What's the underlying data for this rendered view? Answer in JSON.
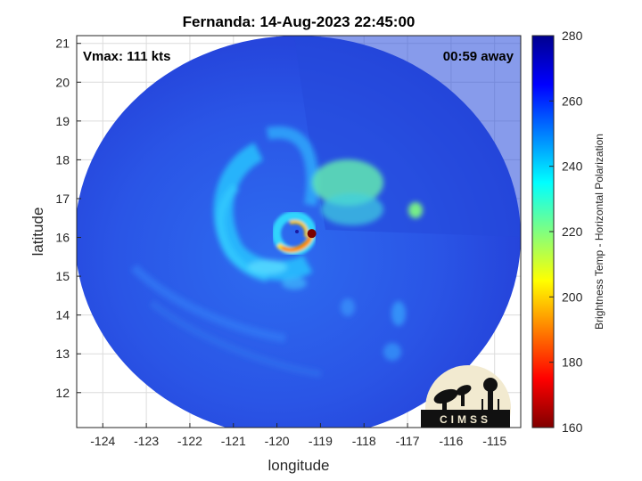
{
  "title": "Fernanda: 14-Aug-2023 22:45:00",
  "vmax_label": "Vmax: 111 kts",
  "time_away_label": "00:59 away",
  "x_axis": {
    "label": "longitude",
    "range": [
      -124.6,
      -114.4
    ],
    "ticks": [
      "-124",
      "-123",
      "-122",
      "-121",
      "-120",
      "-119",
      "-118",
      "-117",
      "-116",
      "-115"
    ]
  },
  "y_axis": {
    "label": "latitude",
    "range": [
      11.1,
      21.2
    ],
    "ticks": [
      "12",
      "13",
      "14",
      "15",
      "16",
      "17",
      "18",
      "19",
      "20",
      "21"
    ]
  },
  "colorbar": {
    "label": "Brightness Temp - Horizontal Polarization",
    "range": [
      160,
      280
    ],
    "ticks": [
      "160",
      "180",
      "200",
      "220",
      "240",
      "260",
      "280"
    ]
  },
  "storm_center": {
    "lon": -119.2,
    "lat": 16.1
  },
  "logo": {
    "text": "CIMSS"
  },
  "colors": {
    "background_field": "#2a55e6",
    "eye": "#7a0000",
    "eyewall": "#ff8800"
  }
}
